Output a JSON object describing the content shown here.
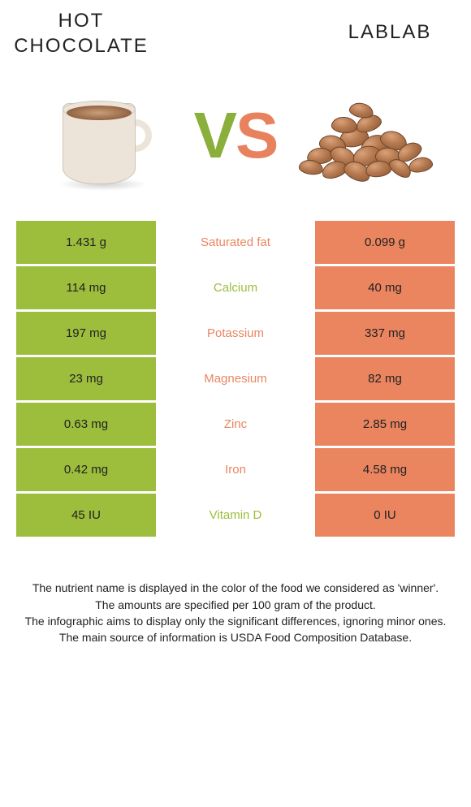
{
  "colors": {
    "left_bg": "#9dbd3c",
    "right_bg": "#ea8560",
    "label_left": "#9dbd3c",
    "label_right": "#ea8560",
    "text": "#222222",
    "v": "#8aaf3a",
    "s": "#e8815e"
  },
  "header": {
    "left_title": "HOT CHOCOLATE",
    "right_title": "LABLAB",
    "vs_v": "V",
    "vs_s": "S"
  },
  "table": {
    "rows": [
      {
        "label": "Saturated fat",
        "left": "1.431 g",
        "right": "0.099 g",
        "winner": "right"
      },
      {
        "label": "Calcium",
        "left": "114 mg",
        "right": "40 mg",
        "winner": "left"
      },
      {
        "label": "Potassium",
        "left": "197 mg",
        "right": "337 mg",
        "winner": "right"
      },
      {
        "label": "Magnesium",
        "left": "23 mg",
        "right": "82 mg",
        "winner": "right"
      },
      {
        "label": "Zinc",
        "left": "0.63 mg",
        "right": "2.85 mg",
        "winner": "right"
      },
      {
        "label": "Iron",
        "left": "0.42 mg",
        "right": "4.58 mg",
        "winner": "right"
      },
      {
        "label": "Vitamin D",
        "left": "45 IU",
        "right": "0 IU",
        "winner": "left"
      }
    ]
  },
  "footer": {
    "lines": [
      "The nutrient name is displayed in the color of the food we considered as 'winner'.",
      "The amounts are specified per 100 gram of the product.",
      "The infographic aims to display only the significant differences, ignoring minor ones.",
      "The main source of information is USDA Food Composition Database."
    ]
  }
}
